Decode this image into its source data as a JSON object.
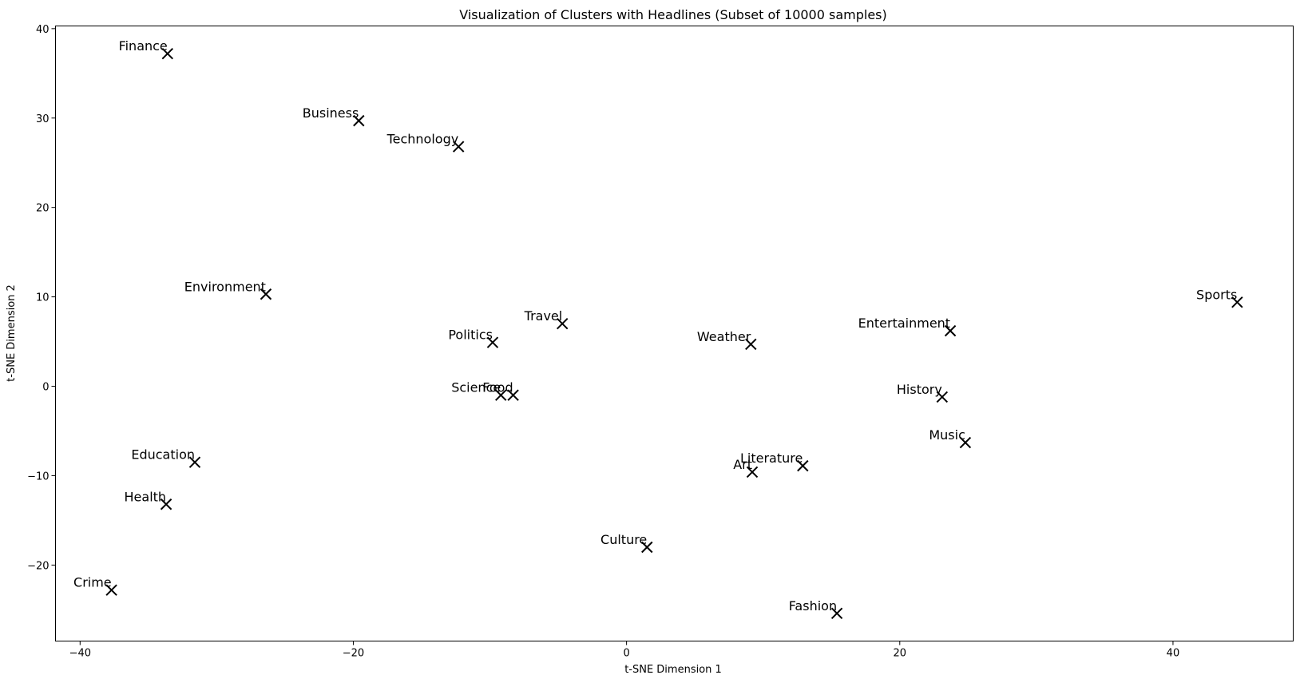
{
  "chart_data": {
    "type": "scatter",
    "title": "Visualization of Clusters with Headlines (Subset of 10000 samples)",
    "xlabel": "t-SNE Dimension 1",
    "ylabel": "t-SNE Dimension 2",
    "xlim": [
      -41.8,
      48.8
    ],
    "ylim": [
      -28.5,
      40.3
    ],
    "xticks": [
      -40,
      -20,
      0,
      20,
      40
    ],
    "yticks": [
      -20,
      -10,
      0,
      10,
      20,
      30,
      40
    ],
    "grid": false,
    "marker": "x",
    "marker_color": "#000000",
    "points": [
      {
        "label": "Finance",
        "x": -33.6,
        "y": 37.2
      },
      {
        "label": "Business",
        "x": -19.6,
        "y": 29.7
      },
      {
        "label": "Technology",
        "x": -12.3,
        "y": 26.8
      },
      {
        "label": "Environment",
        "x": -26.4,
        "y": 10.3
      },
      {
        "label": "Travel",
        "x": -4.7,
        "y": 7.0
      },
      {
        "label": "Politics",
        "x": -9.8,
        "y": 4.9
      },
      {
        "label": "Science",
        "x": -9.2,
        "y": -1.0
      },
      {
        "label": "Food",
        "x": -8.3,
        "y": -1.0
      },
      {
        "label": "Weather",
        "x": 9.1,
        "y": 4.7
      },
      {
        "label": "Entertainment",
        "x": 23.7,
        "y": 6.2
      },
      {
        "label": "Sports",
        "x": 44.7,
        "y": 9.4
      },
      {
        "label": "History",
        "x": 23.1,
        "y": -1.2
      },
      {
        "label": "Music",
        "x": 24.8,
        "y": -6.3
      },
      {
        "label": "Literature",
        "x": 12.9,
        "y": -8.9
      },
      {
        "label": "Art",
        "x": 9.2,
        "y": -9.6
      },
      {
        "label": "Education",
        "x": -31.6,
        "y": -8.5
      },
      {
        "label": "Health",
        "x": -33.7,
        "y": -13.2
      },
      {
        "label": "Culture",
        "x": 1.5,
        "y": -18.0
      },
      {
        "label": "Crime",
        "x": -37.7,
        "y": -22.8
      },
      {
        "label": "Fashion",
        "x": 15.4,
        "y": -25.4
      }
    ]
  }
}
